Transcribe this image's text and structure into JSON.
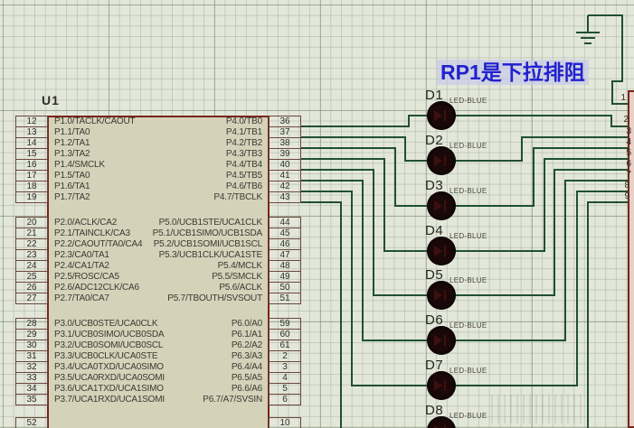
{
  "chip": {
    "ref": "U1",
    "groups": [
      {
        "left": [
          {
            "num": "12",
            "label": "P1.0/TACLK/CAOUT"
          },
          {
            "num": "13",
            "label": "P1.1/TA0"
          },
          {
            "num": "14",
            "label": "P1.2/TA1"
          },
          {
            "num": "15",
            "label": "P1.3/TA2"
          },
          {
            "num": "16",
            "label": "P1.4/SMCLK"
          },
          {
            "num": "17",
            "label": "P1.5/TA0"
          },
          {
            "num": "18",
            "label": "P1.6/TA1"
          },
          {
            "num": "19",
            "label": "P1.7/TA2"
          }
        ],
        "right": [
          {
            "num": "36",
            "label": "P4.0/TB0"
          },
          {
            "num": "37",
            "label": "P4.1/TB1"
          },
          {
            "num": "38",
            "label": "P4.2/TB2"
          },
          {
            "num": "39",
            "label": "P4.3/TB3"
          },
          {
            "num": "40",
            "label": "P4.4/TB4"
          },
          {
            "num": "41",
            "label": "P4.5/TB5"
          },
          {
            "num": "42",
            "label": "P4.6/TB6"
          },
          {
            "num": "43",
            "label": "P4.7/TBCLK"
          }
        ]
      },
      {
        "left": [
          {
            "num": "20",
            "label": "P2.0/ACLK/CA2"
          },
          {
            "num": "21",
            "label": "P2.1/TAINCLK/CA3"
          },
          {
            "num": "22",
            "label": "P2.2/CAOUT/TA0/CA4"
          },
          {
            "num": "23",
            "label": "P2.3/CA0/TA1"
          },
          {
            "num": "24",
            "label": "P2.4/CA1/TA2"
          },
          {
            "num": "25",
            "label": "P2.5/ROSC/CA5"
          },
          {
            "num": "26",
            "label": "P2.6/ADC12CLK/CA6"
          },
          {
            "num": "27",
            "label": "P2.7/TA0/CA7"
          }
        ],
        "right": [
          {
            "num": "44",
            "label": "P5.0/UCB1STE/UCA1CLK"
          },
          {
            "num": "45",
            "label": "P5.1/UCB1SIMO/UCB1SDA"
          },
          {
            "num": "46",
            "label": "P5.2/UCB1SOMI/UCB1SCL"
          },
          {
            "num": "47",
            "label": "P5.3/UCB1CLK/UCA1STE"
          },
          {
            "num": "48",
            "label": "P5.4/MCLK"
          },
          {
            "num": "49",
            "label": "P5.5/SMCLK"
          },
          {
            "num": "50",
            "label": "P5.6/ACLK"
          },
          {
            "num": "51",
            "label": "P5.7/TBOUTH/SVSOUT"
          }
        ]
      },
      {
        "left": [
          {
            "num": "28",
            "label": "P3.0/UCB0STE/UCA0CLK"
          },
          {
            "num": "29",
            "label": "P3.1/UCB0SIMO/UCB0SDA"
          },
          {
            "num": "30",
            "label": "P3.2/UCB0SOMI/UCB0SCL"
          },
          {
            "num": "31",
            "label": "P3.3/UCB0CLK/UCA0STE"
          },
          {
            "num": "32",
            "label": "P3.4/UCA0TXD/UCA0SIMO"
          },
          {
            "num": "33",
            "label": "P3.5/UCA0RXD/UCA0SOMI"
          },
          {
            "num": "34",
            "label": "P3.6/UCA1TXD/UCA1SIMO"
          },
          {
            "num": "35",
            "label": "P3.7/UCA1RXD/UCA1SOMI"
          }
        ],
        "right": [
          {
            "num": "59",
            "label": "P6.0/A0"
          },
          {
            "num": "60",
            "label": "P6.1/A1"
          },
          {
            "num": "61",
            "label": "P6.2/A2"
          },
          {
            "num": "2",
            "label": "P6.3/A3"
          },
          {
            "num": "3",
            "label": "P6.4/A4"
          },
          {
            "num": "4",
            "label": "P6.5/A5"
          },
          {
            "num": "5",
            "label": "P6.6/A6"
          },
          {
            "num": "6",
            "label": "P6.7/A7/SVSIN"
          }
        ]
      }
    ],
    "partial_bottom": {
      "left_num": "52",
      "right_num": "10"
    }
  },
  "leds": [
    {
      "ref": "D1",
      "type": "LED-BLUE"
    },
    {
      "ref": "D2",
      "type": "LED-BLUE"
    },
    {
      "ref": "D3",
      "type": "LED-BLUE"
    },
    {
      "ref": "D4",
      "type": "LED-BLUE"
    },
    {
      "ref": "D5",
      "type": "LED-BLUE"
    },
    {
      "ref": "D6",
      "type": "LED-BLUE"
    },
    {
      "ref": "D7",
      "type": "LED-BLUE"
    },
    {
      "ref": "D8",
      "type": "LED-BLUE"
    }
  ],
  "annotation": {
    "text": "RP1是下拉排阻"
  },
  "resistor_pack": {
    "pins": [
      "1",
      "2",
      "3",
      "4",
      "5",
      "6",
      "7",
      "8",
      "9"
    ]
  },
  "colors": {
    "wire": "#204f33",
    "chip_fill": "#d5d2ba",
    "chip_border": "#7a241a",
    "annotation_blue": "#2121cf",
    "led_body": "#1b0909",
    "background": "#e3e7da"
  }
}
